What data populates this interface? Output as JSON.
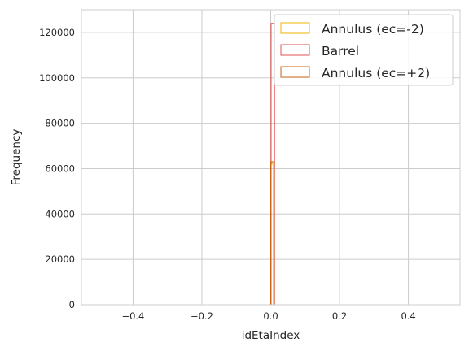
{
  "chart_data": {
    "type": "histogram",
    "xlabel": "idEtaIndex",
    "ylabel": "Frequency",
    "xlim": [
      -0.55,
      0.55
    ],
    "ylim": [
      0,
      130000
    ],
    "grid": true,
    "legend_position": "top-right",
    "x_ticks": [
      "−0.4",
      "−0.2",
      "0.0",
      "0.2",
      "0.4"
    ],
    "x_tick_values": [
      -0.4,
      -0.2,
      0.0,
      0.2,
      0.4
    ],
    "y_ticks": [
      "0",
      "20000",
      "40000",
      "60000",
      "80000",
      "100000",
      "120000"
    ],
    "y_tick_values": [
      0,
      20000,
      40000,
      60000,
      80000,
      100000,
      120000
    ],
    "series": [
      {
        "name": "Annulus (ec=-2)",
        "color": "#f0b400",
        "bin_range": [
          -0.002,
          0.008
        ],
        "value": 62000
      },
      {
        "name": "Barrel",
        "color": "#e05050",
        "bin_range": [
          0.001,
          0.011
        ],
        "value": 124000
      },
      {
        "name": "Annulus (ec=+2)",
        "color": "#c86414",
        "bin_range": [
          0.0,
          0.01
        ],
        "value": 63000
      }
    ]
  }
}
